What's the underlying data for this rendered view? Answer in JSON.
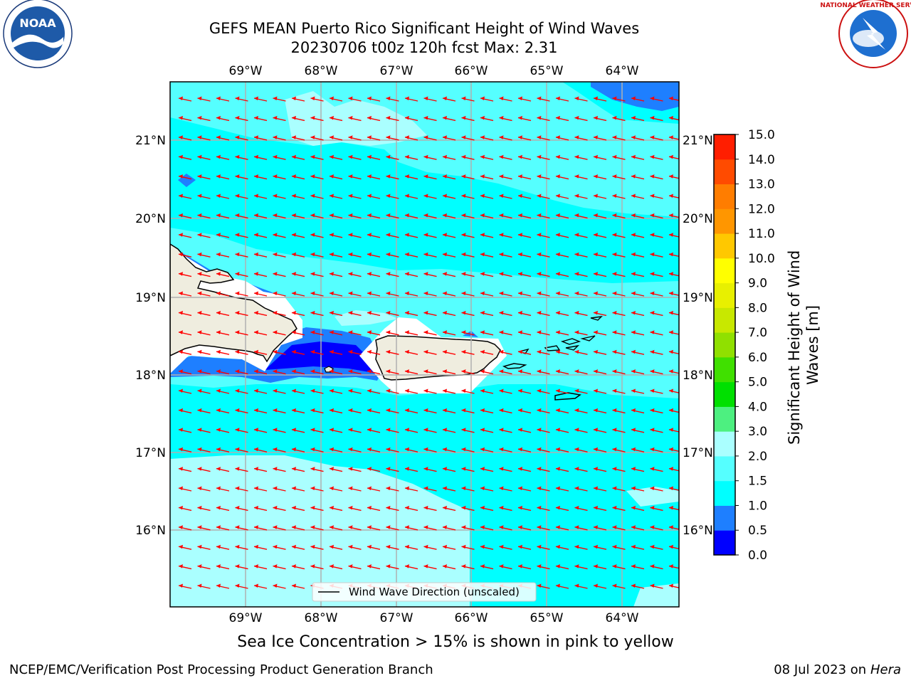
{
  "header": {
    "title_line1": "GEFS MEAN Puerto Rico Significant Height of Wind Waves",
    "title_line2": "20230706 t00z 120h fcst   Max: 2.31"
  },
  "logos": {
    "left": {
      "name": "noaa-logo",
      "text": "NOAA"
    },
    "right": {
      "name": "national-weather-service-logo",
      "text": "NATIONAL WEATHER SERVICE"
    }
  },
  "map": {
    "lon_labels": [
      "69°W",
      "68°W",
      "67°W",
      "66°W",
      "65°W",
      "64°W"
    ],
    "lat_labels": [
      "21°N",
      "20°N",
      "19°N",
      "18°N",
      "17°N",
      "16°N"
    ],
    "gridlines": true,
    "vector_color": "#ff0000",
    "wind_direction": "from east (arrows pointing west)",
    "legend": {
      "label": "Wind Wave Direction (unscaled)",
      "position": "bottom-center"
    },
    "colors": {
      "ocean_0_5_1": "#1e7fff",
      "ocean_0_0_5": "#0000ff",
      "ocean_1_1_5": "#00ffff",
      "ocean_1_5_2": "#55ffff",
      "ocean_2_3": "#aaffff",
      "land": "#efeddf",
      "no_data": "#ffffff"
    }
  },
  "colorbar": {
    "label_line1": "Significant Height of Wind",
    "label_line2": "Waves [m]",
    "ticks": [
      "0.0",
      "0.5",
      "1.0",
      "1.5",
      "2.0",
      "3.0",
      "4.0",
      "5.0",
      "6.0",
      "7.0",
      "8.0",
      "9.0",
      "10.0",
      "11.0",
      "12.0",
      "13.0",
      "14.0",
      "15.0"
    ],
    "colors": [
      "#0000ff",
      "#1e7fff",
      "#00ffff",
      "#55ffff",
      "#aaffff",
      "#4df080",
      "#00e000",
      "#40e000",
      "#90e000",
      "#c8e800",
      "#e8f000",
      "#ffff00",
      "#ffc800",
      "#ff9600",
      "#ff7d00",
      "#ff4b00",
      "#ff1e00"
    ]
  },
  "caption": "Sea Ice Concentration > 15% is shown in pink to yellow",
  "footer": {
    "left": "NCEP/EMC/Verification Post Processing Product Generation Branch",
    "right_prefix": "08 Jul 2023 on ",
    "right_host": "Hera"
  },
  "chart_data": {
    "type": "heatmap",
    "title": "GEFS MEAN Puerto Rico Significant Height of Wind Waves",
    "subtitle": "20230706 t00z 120h fcst   Max: 2.31",
    "variable": "Significant Height of Wind Waves [m]",
    "max_value": 2.31,
    "lon_range": [
      -70.0,
      -63.25
    ],
    "lat_range": [
      15.0,
      21.75
    ],
    "color_levels": [
      0.0,
      0.5,
      1.0,
      1.5,
      2.0,
      3.0,
      4.0,
      5.0,
      6.0,
      7.0,
      8.0,
      9.0,
      10.0,
      11.0,
      12.0,
      13.0,
      14.0,
      15.0
    ],
    "vector_field": "Wind Wave Direction (unscaled)",
    "grid": true
  }
}
